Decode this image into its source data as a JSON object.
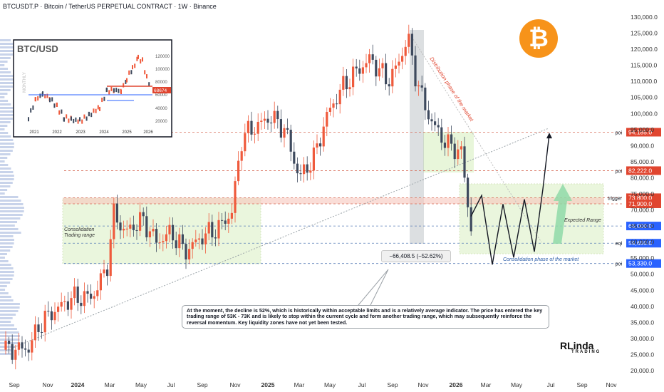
{
  "header": {
    "title": "BTCUSDT.P · Bitcoin / TetherUS PERPETUAL CONTRACT · 1W · Binance"
  },
  "inset": {
    "title": "BTC/USD",
    "side_label": "MONTHLY",
    "price_tag": "68674",
    "y_ticks": [
      "120000",
      "100000",
      "80000",
      "60000",
      "40000",
      "20000"
    ],
    "x_ticks": [
      "2021",
      "2022",
      "2023",
      "2024",
      "2025",
      "2026"
    ]
  },
  "icons": {
    "coin": "bitcoin-icon",
    "brand": "rlinda-logo"
  },
  "annotations": {
    "distribution": "Distribution phase of the market",
    "consolidation_left": "Consolidation\nTrading range",
    "consolidation_right": "Consolidation phase of the market",
    "expected": "Expected Range",
    "measure": "−66,408.5 (−52.62%)",
    "note": "At the moment, the decline is 52%, which is historically within acceptable limits and is a relatively average indicator. The price has entered the key trading range of 53K - 73K and is likely to stop within the current cycle and form another trading range, which may subsequently reinforce the reversal momentum. Key liquidity zones have not yet been tested."
  },
  "brand": {
    "name": "RLinda",
    "sub": "TRADING"
  },
  "colors": {
    "up": "#ef5a3c",
    "down": "#3e4a5e",
    "zone": "#d9f0c2",
    "level": "#e0452f"
  },
  "chart_data": {
    "type": "candlestick",
    "title": "BTCUSDT.P · Bitcoin / TetherUS PERPETUAL CONTRACT · 1W · Binance",
    "y_axis": {
      "ticks": [
        "130,000.0",
        "125,000.0",
        "120,000.0",
        "115,000.0",
        "110,000.0",
        "105,000.0",
        "100,000.0",
        "95,000.0",
        "90,000.0",
        "85,000.0",
        "80,000.0",
        "75,000.0",
        "70,000.0",
        "65,000.0",
        "60,000.0",
        "55,000.0",
        "50,000.0",
        "45,000.0",
        "40,000.0",
        "35,000.0",
        "30,000.0",
        "25,000.0",
        "20,000.0"
      ]
    },
    "x_axis": {
      "ticks": [
        "Sep",
        "Nov",
        "2024",
        "Mar",
        "May",
        "Jul",
        "Sep",
        "Nov",
        "2025",
        "Mar",
        "May",
        "Jul",
        "Sep",
        "Nov",
        "2026",
        "Mar",
        "May",
        "Jul",
        "Sep",
        "Nov"
      ]
    },
    "levels": [
      {
        "label": "poi",
        "value": "94,185.0",
        "color": "#e0452f"
      },
      {
        "label": "poi",
        "value": "82,222.0",
        "color": "#e0452f"
      },
      {
        "label": "trigger",
        "value": "73,800.0",
        "color": "#e0452f"
      },
      {
        "label": "",
        "value": "71,900.0",
        "color": "#e0452f"
      },
      {
        "label": "",
        "value": "65,000.0",
        "color": "#2962ff"
      },
      {
        "label": "eql",
        "value": "59,650.0",
        "color": "#2962ff"
      },
      {
        "label": "poi",
        "value": "53,330.0",
        "color": "#2962ff"
      }
    ],
    "projection": [
      68000,
      74500,
      53000,
      71800,
      55200,
      73300,
      57000,
      76500,
      93600
    ]
  }
}
